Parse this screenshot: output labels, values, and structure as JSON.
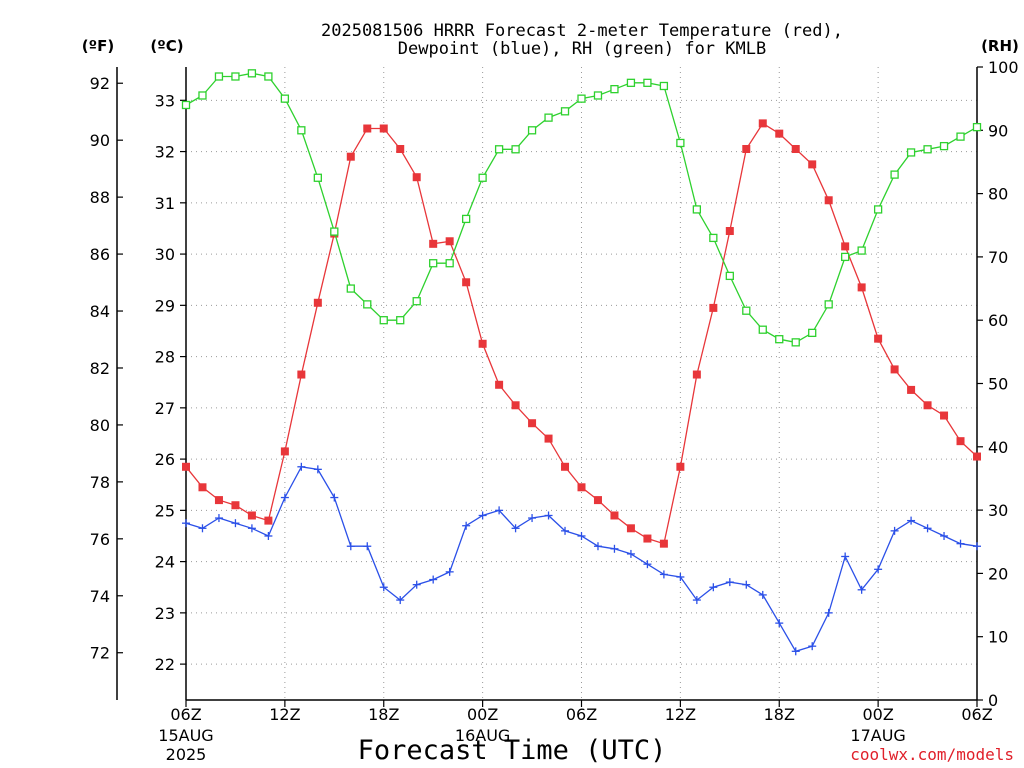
{
  "chart_data": {
    "type": "line",
    "title_line1": "2025081506 HRRR Forecast 2-meter Temperature (red),",
    "title_line2": "Dewpoint (blue), RH (green) for KMLB",
    "xlabel": "Forecast Time (UTC)",
    "credit": "coolwx.com/models",
    "units": {
      "fahrenheit": "(ºF)",
      "celsius": "(ºC)",
      "rh": "(RH)"
    },
    "x_hours_from_start": [
      0,
      42
    ],
    "x_ticks": [
      {
        "hour": 0,
        "label": "06Z",
        "date": "15AUG",
        "year": "2025"
      },
      {
        "hour": 6,
        "label": "12Z"
      },
      {
        "hour": 12,
        "label": "18Z"
      },
      {
        "hour": 18,
        "label": "00Z",
        "date": "16AUG"
      },
      {
        "hour": 24,
        "label": "06Z"
      },
      {
        "hour": 30,
        "label": "12Z"
      },
      {
        "hour": 36,
        "label": "18Z"
      },
      {
        "hour": 42,
        "label": "00Z",
        "date": "17AUG"
      },
      {
        "hour": 48,
        "label": "06Z"
      }
    ],
    "celsius_axis": {
      "range": [
        21.3,
        33.65
      ],
      "ticks": [
        22,
        23,
        24,
        25,
        26,
        27,
        28,
        29,
        30,
        31,
        32,
        33
      ]
    },
    "fahrenheit_axis": {
      "ticks": [
        72,
        74,
        76,
        78,
        80,
        82,
        84,
        86,
        88,
        90,
        92
      ]
    },
    "rh_axis": {
      "range": [
        0,
        100
      ],
      "ticks": [
        0,
        10,
        20,
        30,
        40,
        50,
        60,
        70,
        80,
        90,
        100
      ]
    },
    "series": [
      {
        "name": "Temperature",
        "color": "#e8363a",
        "marker": "filled-square",
        "axis": "celsius",
        "values": [
          25.85,
          25.45,
          25.2,
          25.1,
          24.9,
          24.8,
          26.15,
          27.65,
          29.05,
          30.4,
          31.9,
          32.45,
          32.45,
          32.05,
          31.5,
          30.2,
          30.25,
          29.45,
          28.25,
          27.45,
          27.05,
          26.7,
          26.4,
          25.85,
          25.45,
          25.2,
          24.9,
          24.65,
          24.45,
          24.35,
          25.85,
          27.65,
          28.95,
          30.45,
          32.05,
          32.55,
          32.35,
          32.05,
          31.75,
          31.05,
          30.15,
          29.35,
          28.35,
          27.75,
          27.35,
          27.05,
          26.85,
          26.35,
          26.05
        ]
      },
      {
        "name": "Dewpoint",
        "color": "#2b50e8",
        "marker": "plus",
        "axis": "celsius",
        "values": [
          24.75,
          24.65,
          24.85,
          24.75,
          24.65,
          24.5,
          25.25,
          25.85,
          25.8,
          25.25,
          24.3,
          24.3,
          23.5,
          23.25,
          23.55,
          23.65,
          23.8,
          24.7,
          24.9,
          25.0,
          24.65,
          24.85,
          24.9,
          24.6,
          24.5,
          24.3,
          24.25,
          24.15,
          23.95,
          23.75,
          23.7,
          23.25,
          23.5,
          23.6,
          23.55,
          23.35,
          22.8,
          22.25,
          22.35,
          23.0,
          24.1,
          23.45,
          23.85,
          24.6,
          24.8,
          24.65,
          24.5,
          24.35,
          24.3
        ]
      },
      {
        "name": "RH",
        "color": "#2ed12e",
        "marker": "open-square",
        "axis": "rh",
        "values": [
          94,
          95.5,
          98.5,
          98.5,
          99,
          98.5,
          95,
          90,
          82.5,
          74,
          65,
          62.5,
          60,
          60,
          63,
          69,
          69,
          76,
          82.5,
          87,
          87,
          90,
          92,
          93,
          95,
          95.5,
          96.5,
          97.5,
          97.5,
          97,
          88,
          77.5,
          73,
          67,
          61.5,
          58.5,
          57,
          56.5,
          58,
          62.5,
          70,
          71,
          77.5,
          83,
          86.5,
          87,
          87.5,
          89,
          90.5
        ]
      }
    ],
    "grid": true
  }
}
